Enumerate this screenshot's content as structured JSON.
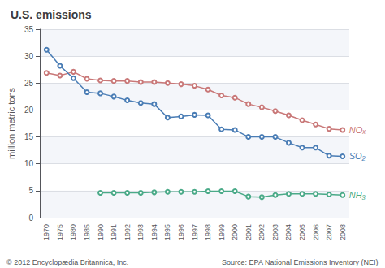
{
  "chart_data": {
    "type": "line",
    "title": "U.S. emissions",
    "ylabel": "million metric tons",
    "annotations": [
      "© 2012 Encyclopædia Britannica, Inc.",
      "Source: EPA National Emissions Inventory (NEI)"
    ],
    "categories": [
      "1970",
      "1975",
      "1980",
      "1985",
      "1990",
      "1991",
      "1992",
      "1993",
      "1994",
      "1995",
      "1996",
      "1997",
      "1998",
      "1999",
      "2000",
      "2001",
      "2002",
      "2003",
      "2004",
      "2005",
      "2006",
      "2007",
      "2008"
    ],
    "series": [
      {
        "name": "NOₓ",
        "color": "#c97878",
        "values": [
          26.9,
          26.4,
          27.1,
          25.8,
          25.5,
          25.4,
          25.4,
          25.2,
          25.2,
          25.0,
          24.8,
          24.5,
          23.8,
          22.7,
          22.3,
          21.1,
          20.5,
          19.8,
          19.0,
          18.1,
          17.3,
          16.5,
          16.3
        ]
      },
      {
        "name": "SO₂",
        "color": "#4a7db5",
        "values": [
          31.2,
          28.2,
          25.9,
          23.3,
          23.1,
          22.5,
          21.8,
          21.3,
          21.1,
          18.6,
          18.8,
          19.1,
          19.0,
          16.4,
          16.3,
          15.0,
          15.0,
          15.0,
          13.9,
          13.0,
          13.0,
          11.5,
          11.4
        ]
      },
      {
        "name": "NH₃",
        "color": "#4aaa88",
        "values": [
          null,
          null,
          null,
          null,
          4.6,
          4.6,
          4.6,
          4.6,
          4.7,
          4.8,
          4.8,
          4.8,
          4.9,
          4.9,
          4.9,
          3.9,
          3.8,
          4.2,
          4.4,
          4.4,
          4.4,
          4.3,
          4.2
        ]
      }
    ],
    "ylim": [
      0,
      35
    ],
    "yticks": [
      0,
      5,
      10,
      15,
      20,
      25,
      30,
      35
    ],
    "grid": true,
    "marker": "circle"
  }
}
